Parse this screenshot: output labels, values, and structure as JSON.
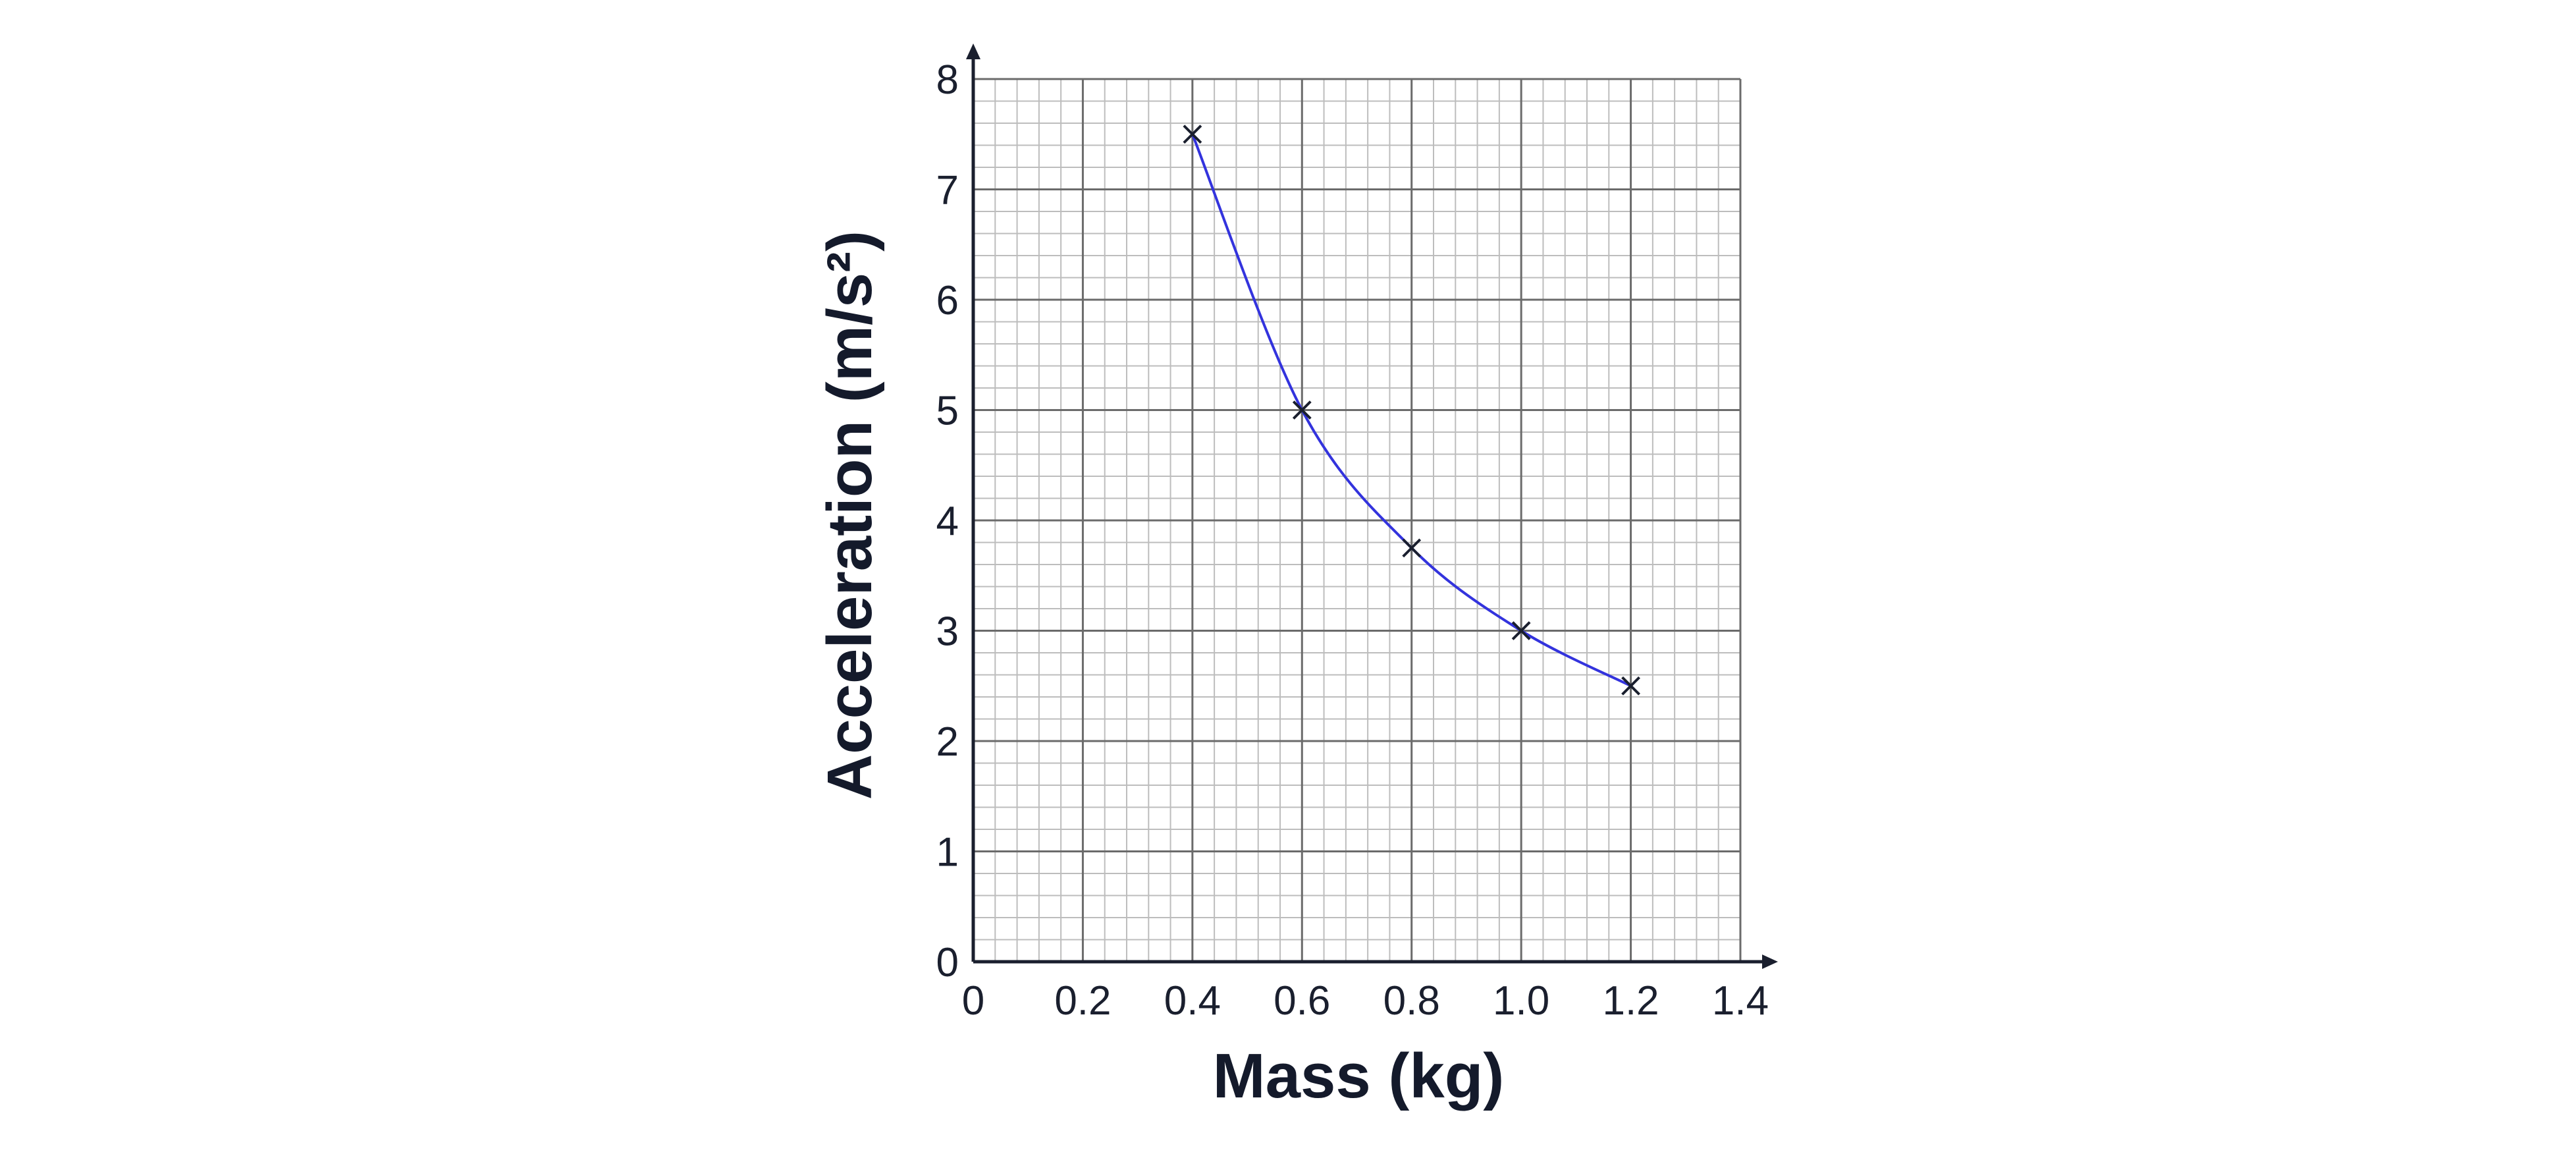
{
  "chart_data": {
    "type": "scatter",
    "xlabel": "Mass (kg)",
    "ylabel": "Acceleration (m/s²)",
    "xlim": [
      0,
      1.4
    ],
    "ylim": [
      0,
      8
    ],
    "x_ticks": [
      "0",
      "0.2",
      "0.4",
      "0.6",
      "0.8",
      "1.0",
      "1.2",
      "1.4"
    ],
    "y_ticks": [
      "0",
      "1",
      "2",
      "3",
      "4",
      "5",
      "6",
      "7",
      "8"
    ],
    "grid": true,
    "minor_grid_step": {
      "x": 0.04,
      "y": 0.2
    },
    "marker": "x",
    "curve": "smooth best-fit curve through points",
    "colors": {
      "curve": "#3333dd",
      "marker": "#1a1f2e",
      "major_grid": "#6b6b6b",
      "minor_grid": "#bdbdbd",
      "axis": "#1a1f2e"
    },
    "series": [
      {
        "x": [
          0.4,
          0.6,
          0.8,
          1.0,
          1.2
        ],
        "y": [
          7.5,
          5.0,
          3.75,
          3.0,
          2.5
        ]
      }
    ]
  }
}
